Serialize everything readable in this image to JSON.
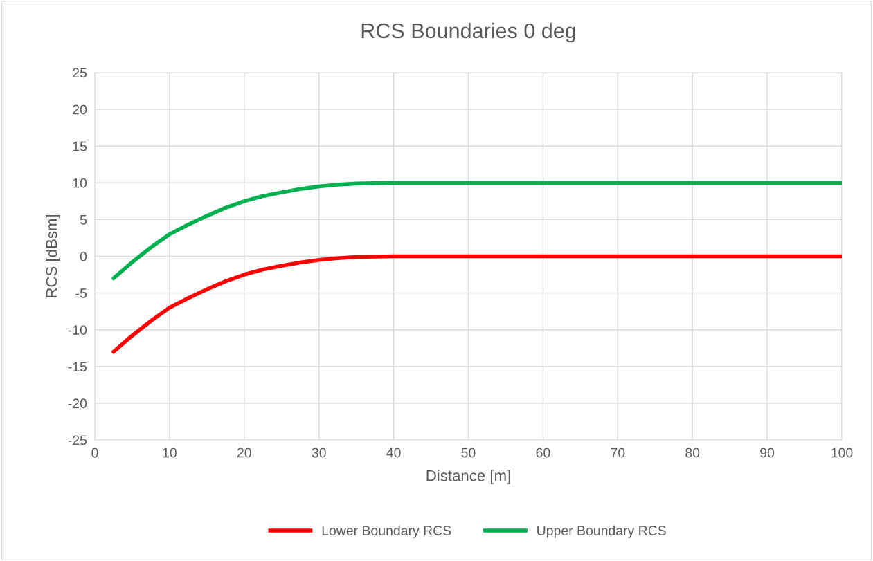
{
  "chart_data": {
    "type": "line",
    "title": "RCS Boundaries 0 deg",
    "xlabel": "Distance [m]",
    "ylabel": "RCS [dBsm]",
    "xlim": [
      0,
      100
    ],
    "xticks": [
      0,
      10,
      20,
      30,
      40,
      50,
      60,
      70,
      80,
      90,
      100
    ],
    "ylim": [
      -25,
      25
    ],
    "yticks": [
      -25,
      -20,
      -15,
      -10,
      -5,
      0,
      5,
      10,
      15,
      20,
      25
    ],
    "grid": true,
    "legend": "bottom",
    "marker": "none",
    "line_style": "solid",
    "series": [
      {
        "name": "Lower Boundary RCS",
        "color": "#ff0000",
        "x": [
          2.5,
          5,
          7.5,
          10,
          12.5,
          15,
          17.5,
          20,
          22.5,
          25,
          27.5,
          30,
          32.5,
          35,
          40,
          45,
          50,
          60,
          70,
          80,
          90,
          100
        ],
        "values": [
          -13,
          -10.8,
          -8.8,
          -7,
          -5.7,
          -4.5,
          -3.4,
          -2.5,
          -1.8,
          -1.3,
          -0.85,
          -0.5,
          -0.25,
          -0.1,
          0,
          0,
          0,
          0,
          0,
          0,
          0,
          0
        ]
      },
      {
        "name": "Upper Boundary RCS",
        "color": "#00b050",
        "x": [
          2.5,
          5,
          7.5,
          10,
          12.5,
          15,
          17.5,
          20,
          22.5,
          25,
          27.5,
          30,
          32.5,
          35,
          40,
          45,
          50,
          60,
          70,
          80,
          90,
          100
        ],
        "values": [
          -3,
          -0.8,
          1.2,
          3,
          4.3,
          5.5,
          6.6,
          7.5,
          8.2,
          8.7,
          9.15,
          9.5,
          9.75,
          9.9,
          10,
          10,
          10,
          10,
          10,
          10,
          10,
          10
        ]
      }
    ]
  }
}
